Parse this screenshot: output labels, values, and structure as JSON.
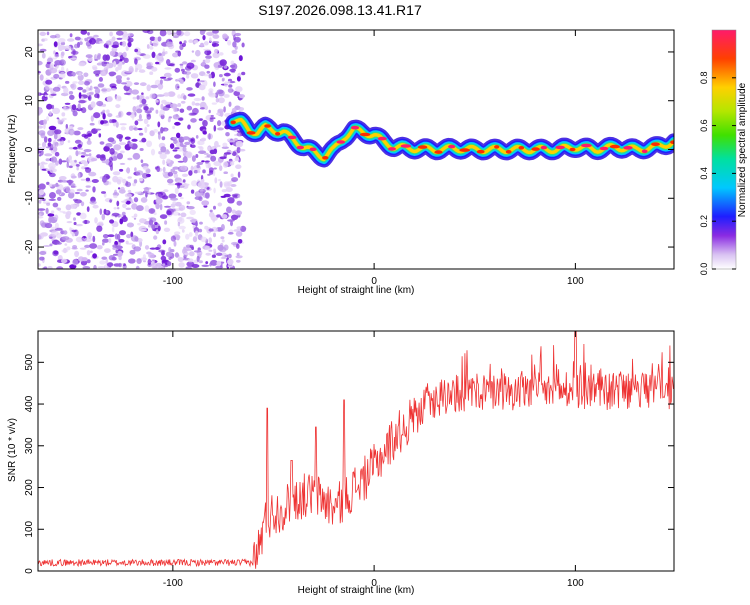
{
  "title": "S197.2026.098.13.41.R17",
  "chart_data": [
    {
      "type": "heatmap",
      "title": "S197.2026.098.13.41.R17",
      "xlabel": "Height of straight line (km)",
      "ylabel": "Frequency (Hz)",
      "xlim": [
        -167,
        149
      ],
      "ylim": [
        -24.5,
        24.5
      ],
      "xticks": [
        -100,
        0,
        100
      ],
      "yticks": [
        -20,
        -10,
        0,
        10,
        20
      ],
      "noise_x_range": [
        -167,
        -67
      ],
      "ridge_x": [
        -70,
        -66,
        -62,
        -58,
        -54,
        -50,
        -45,
        -40,
        -35,
        -30,
        -25,
        -20,
        -15,
        -10,
        -5,
        0,
        5,
        10,
        20,
        30,
        40,
        50,
        60,
        70,
        80,
        90,
        100,
        110,
        120,
        130,
        140,
        149
      ],
      "ridge_freq": [
        6,
        5.5,
        4,
        3.5,
        4.5,
        4,
        3.5,
        2,
        0.5,
        -0.5,
        -1.5,
        0,
        2.5,
        4,
        3.5,
        3,
        1.5,
        0.5,
        0.2,
        0,
        0.2,
        0,
        0,
        0,
        0,
        0,
        0.5,
        0,
        0.5,
        0,
        0.5,
        1.5
      ],
      "colorbar": {
        "label": "Normalized spectral amplitude",
        "range": [
          0,
          1
        ],
        "ticks": [
          0.0,
          0.2,
          0.4,
          0.6,
          0.8
        ]
      }
    },
    {
      "type": "line",
      "xlabel": "Height of straight line (km)",
      "ylabel": "SNR (10 * v/v)",
      "xlim": [
        -167,
        149
      ],
      "ylim": [
        0,
        575
      ],
      "xticks": [
        -100,
        0,
        100
      ],
      "yticks": [
        0,
        100,
        200,
        300,
        400,
        500
      ],
      "color": "#ee3333",
      "trend_x": [
        -167,
        -60,
        -57,
        -54,
        -50,
        -45,
        -40,
        -35,
        -30,
        -25,
        -20,
        -15,
        -10,
        -5,
        0,
        10,
        20,
        30,
        40,
        60,
        80,
        100,
        120,
        149
      ],
      "trend_y": [
        20,
        20,
        60,
        120,
        140,
        150,
        170,
        180,
        185,
        170,
        150,
        170,
        200,
        220,
        250,
        320,
        370,
        410,
        425,
        430,
        430,
        430,
        430,
        430
      ],
      "spikes": [
        {
          "x": -53,
          "y": 390
        },
        {
          "x": -41,
          "y": 265
        },
        {
          "x": -29,
          "y": 345
        },
        {
          "x": -15,
          "y": 410
        },
        {
          "x": 100,
          "y": 575
        }
      ]
    }
  ]
}
